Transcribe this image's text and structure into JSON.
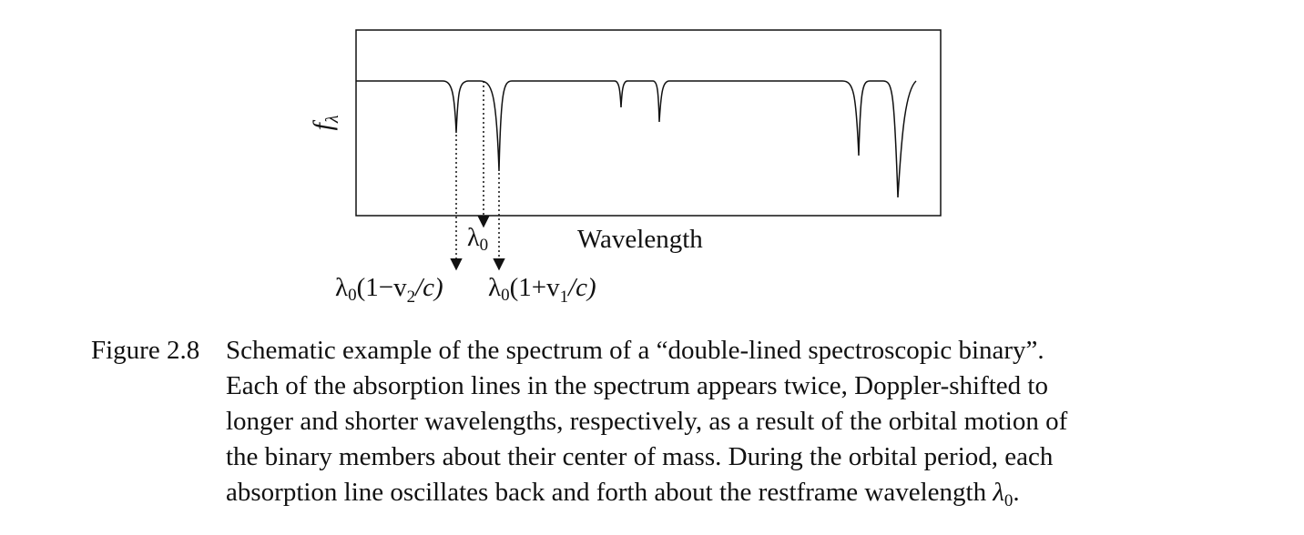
{
  "diagram": {
    "y_axis_label": {
      "main": "f",
      "sub": "λ"
    },
    "x_axis_label": "Wavelength",
    "rest_label": {
      "main": "λ",
      "sub": "0"
    },
    "blue_label": {
      "lam": "λ",
      "lam_sub": "0",
      "open": "(1−v",
      "v_sub": "2",
      "close": "/c)"
    },
    "red_label": {
      "lam": "λ",
      "lam_sub": "0",
      "open": "(1+v",
      "v_sub": "1",
      "close": "/c)"
    }
  },
  "caption": {
    "label": "Figure 2.8",
    "lines": [
      "Schematic example of the spectrum of a “double-lined spectroscopic binary”.",
      "Each of the absorption lines in the spectrum appears twice, Doppler-shifted to",
      "longer and shorter wavelengths, respectively, as a result of the orbital motion of",
      "the binary members about their center of mass. During the orbital period, each"
    ],
    "last_line": "absorption line oscillates back and forth about the restframe wavelength",
    "last_lambda": "λ",
    "last_sub": "0",
    "last_end": "."
  }
}
